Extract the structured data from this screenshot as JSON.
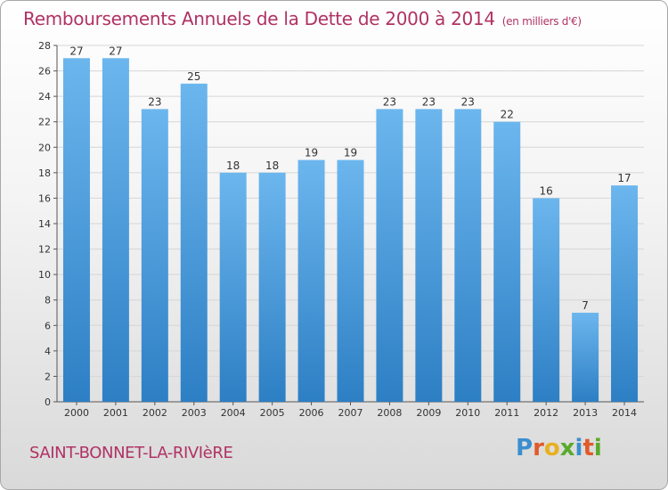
{
  "header": {
    "title": "Remboursements Annuels de la Dette de 2000 à 2014",
    "unit": "(en milliers d'€)"
  },
  "footer": {
    "commune": "SAINT-BONNET-LA-RIVIèRE",
    "logo": [
      "P",
      "r",
      "o",
      "x",
      "i",
      "t",
      "i"
    ],
    "logo_colors": [
      "#3b8ed0",
      "#e05a2a",
      "#e8b020",
      "#5aaa2a",
      "#3b8ed0",
      "#e05a2a",
      "#5aaa2a"
    ]
  },
  "colors": {
    "bar_top": "#6cb6ee",
    "bar_bottom": "#2d7fc4",
    "axis": "#555555",
    "grid": "#d6d6d6"
  },
  "chart_data": {
    "type": "bar",
    "title": "Remboursements Annuels de la Dette de 2000 à 2014",
    "xlabel": "",
    "ylabel": "",
    "ylim": [
      0,
      28
    ],
    "yticks": [
      0,
      2,
      4,
      6,
      8,
      10,
      12,
      14,
      16,
      18,
      20,
      22,
      24,
      26,
      28
    ],
    "categories": [
      "2000",
      "2001",
      "2002",
      "2003",
      "2004",
      "2005",
      "2006",
      "2007",
      "2008",
      "2009",
      "2010",
      "2011",
      "2012",
      "2013",
      "2014"
    ],
    "values": [
      27,
      27,
      23,
      25,
      18,
      18,
      19,
      19,
      23,
      23,
      23,
      22,
      16,
      7,
      17
    ],
    "grid": true
  }
}
